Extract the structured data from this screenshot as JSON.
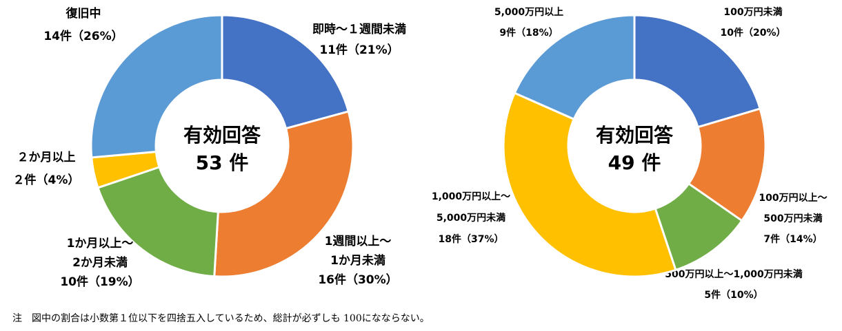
{
  "chart_data": [
    {
      "type": "pie",
      "subtype": "donut",
      "center_label": {
        "line1": "有効回答",
        "line2": "53 件"
      },
      "slices": [
        {
          "name": "即時～１週間未満",
          "label_lines": [
            "即時～１週間未満",
            "11件（21%）"
          ],
          "value": 11,
          "percent": 21,
          "color": "#4472C4"
        },
        {
          "name": "1週間以上～1か月未満",
          "label_lines": [
            "1週間以上～",
            "1か月未満",
            "16件（30%）"
          ],
          "value": 16,
          "percent": 30,
          "color": "#ED7D31"
        },
        {
          "name": "1か月以上～2か月未満",
          "label_lines": [
            "1か月以上～",
            "2か月未満",
            "10件（19%）"
          ],
          "value": 10,
          "percent": 19,
          "color": "#70AD47"
        },
        {
          "name": "２か月以上",
          "label_lines": [
            "２か月以上",
            "２件（4%）"
          ],
          "value": 2,
          "percent": 4,
          "color": "#FFC000"
        },
        {
          "name": "復旧中",
          "label_lines": [
            "復旧中",
            "14件（26%）"
          ],
          "value": 14,
          "percent": 26,
          "color": "#5B9BD5"
        }
      ]
    },
    {
      "type": "pie",
      "subtype": "donut",
      "center_label": {
        "line1": "有効回答",
        "line2": "49 件"
      },
      "slices": [
        {
          "name": "100万円未満",
          "label_lines": [
            "100万円未満",
            "10件（20%）"
          ],
          "value": 10,
          "percent": 20,
          "color": "#4472C4"
        },
        {
          "name": "100万円以上～500万円未満",
          "label_lines": [
            "100万円以上～",
            "500万円未満",
            "7件（14%）"
          ],
          "value": 7,
          "percent": 14,
          "color": "#ED7D31"
        },
        {
          "name": "500万円以上～1,000万円未満",
          "label_lines": [
            "500万円以上～1,000万円未満",
            "5件（10%）"
          ],
          "value": 5,
          "percent": 10,
          "color": "#70AD47"
        },
        {
          "name": "1,000万円以上～5,000万円未満",
          "label_lines": [
            "1,000万円以上～",
            "5,000万円未満",
            "18件（37%）"
          ],
          "value": 18,
          "percent": 37,
          "color": "#FFC000"
        },
        {
          "name": "5,000万円以上",
          "label_lines": [
            "5,000万円以上",
            "9件（18%）"
          ],
          "value": 9,
          "percent": 18,
          "color": "#5B9BD5"
        }
      ]
    }
  ],
  "note": "注　図中の割合は小数第１位以下を四捨五入しているため、総計が必ずしも 100になならない。"
}
